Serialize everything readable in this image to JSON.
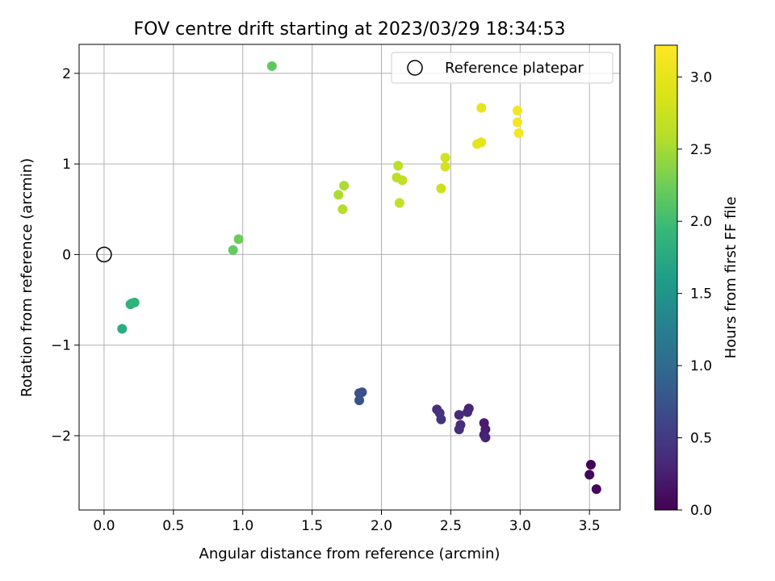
{
  "chart_data": {
    "type": "scatter",
    "title": "FOV centre drift starting at 2023/03/29 18:34:53",
    "xlabel": "Angular distance from reference (arcmin)",
    "ylabel": "Rotation from reference (arcmin)",
    "xlim": [
      -0.18,
      3.72
    ],
    "ylim": [
      -2.82,
      2.32
    ],
    "x_ticks": [
      0.0,
      0.5,
      1.0,
      1.5,
      2.0,
      2.5,
      3.0,
      3.5
    ],
    "x_tick_labels": [
      "0.0",
      "0.5",
      "1.0",
      "1.5",
      "2.0",
      "2.5",
      "3.0",
      "3.5"
    ],
    "y_ticks": [
      -2,
      -1,
      0,
      1,
      2
    ],
    "y_tick_labels": [
      "−2",
      "−1",
      "0",
      "1",
      "2"
    ],
    "grid": true,
    "legend": {
      "position": "top-right",
      "entries": [
        {
          "label": "Reference platepar",
          "marker": "open-circle"
        }
      ]
    },
    "reference_point": {
      "x": 0.0,
      "y": 0.0
    },
    "colorbar": {
      "label": "Hours from first FF file",
      "colormap": "viridis",
      "range": [
        0.0,
        3.22
      ],
      "ticks": [
        0.0,
        0.5,
        1.0,
        1.5,
        2.0,
        2.5,
        3.0
      ],
      "tick_labels": [
        "0.0",
        "0.5",
        "1.0",
        "1.5",
        "2.0",
        "2.5",
        "3.0"
      ]
    },
    "points": [
      {
        "x": 3.51,
        "y": -2.32,
        "c": 0.02
      },
      {
        "x": 3.5,
        "y": -2.43,
        "c": 0.04
      },
      {
        "x": 3.55,
        "y": -2.59,
        "c": 0.06
      },
      {
        "x": 2.74,
        "y": -1.86,
        "c": 0.22
      },
      {
        "x": 2.75,
        "y": -1.93,
        "c": 0.24
      },
      {
        "x": 2.74,
        "y": -1.99,
        "c": 0.26
      },
      {
        "x": 2.75,
        "y": -2.02,
        "c": 0.28
      },
      {
        "x": 2.63,
        "y": -1.7,
        "c": 0.3
      },
      {
        "x": 2.62,
        "y": -1.74,
        "c": 0.32
      },
      {
        "x": 2.56,
        "y": -1.77,
        "c": 0.34
      },
      {
        "x": 2.57,
        "y": -1.88,
        "c": 0.36
      },
      {
        "x": 2.56,
        "y": -1.93,
        "c": 0.38
      },
      {
        "x": 2.4,
        "y": -1.71,
        "c": 0.4
      },
      {
        "x": 2.42,
        "y": -1.75,
        "c": 0.42
      },
      {
        "x": 2.43,
        "y": -1.82,
        "c": 0.44
      },
      {
        "x": 1.84,
        "y": -1.53,
        "c": 0.7
      },
      {
        "x": 1.86,
        "y": -1.52,
        "c": 0.72
      },
      {
        "x": 1.84,
        "y": -1.61,
        "c": 0.74
      },
      {
        "x": 0.13,
        "y": -0.82,
        "c": 1.8
      },
      {
        "x": 0.19,
        "y": -0.55,
        "c": 1.84
      },
      {
        "x": 0.2,
        "y": -0.54,
        "c": 1.86
      },
      {
        "x": 0.22,
        "y": -0.53,
        "c": 1.88
      },
      {
        "x": 0.93,
        "y": 0.05,
        "c": 2.2
      },
      {
        "x": 0.97,
        "y": 0.17,
        "c": 2.24
      },
      {
        "x": 1.21,
        "y": 2.08,
        "c": 2.16
      },
      {
        "x": 1.69,
        "y": 0.66,
        "c": 2.55
      },
      {
        "x": 1.73,
        "y": 0.76,
        "c": 2.53
      },
      {
        "x": 1.72,
        "y": 0.5,
        "c": 2.57
      },
      {
        "x": 2.12,
        "y": 0.98,
        "c": 2.62
      },
      {
        "x": 2.11,
        "y": 0.85,
        "c": 2.64
      },
      {
        "x": 2.15,
        "y": 0.82,
        "c": 2.66
      },
      {
        "x": 2.13,
        "y": 0.57,
        "c": 2.68
      },
      {
        "x": 2.43,
        "y": 0.73,
        "c": 2.78
      },
      {
        "x": 2.46,
        "y": 1.07,
        "c": 2.8
      },
      {
        "x": 2.46,
        "y": 0.97,
        "c": 2.82
      },
      {
        "x": 2.69,
        "y": 1.22,
        "c": 2.96
      },
      {
        "x": 2.72,
        "y": 1.24,
        "c": 2.98
      },
      {
        "x": 2.72,
        "y": 1.62,
        "c": 3.0
      },
      {
        "x": 2.98,
        "y": 1.59,
        "c": 3.1
      },
      {
        "x": 2.98,
        "y": 1.46,
        "c": 3.12
      },
      {
        "x": 2.99,
        "y": 1.34,
        "c": 3.14
      }
    ]
  }
}
